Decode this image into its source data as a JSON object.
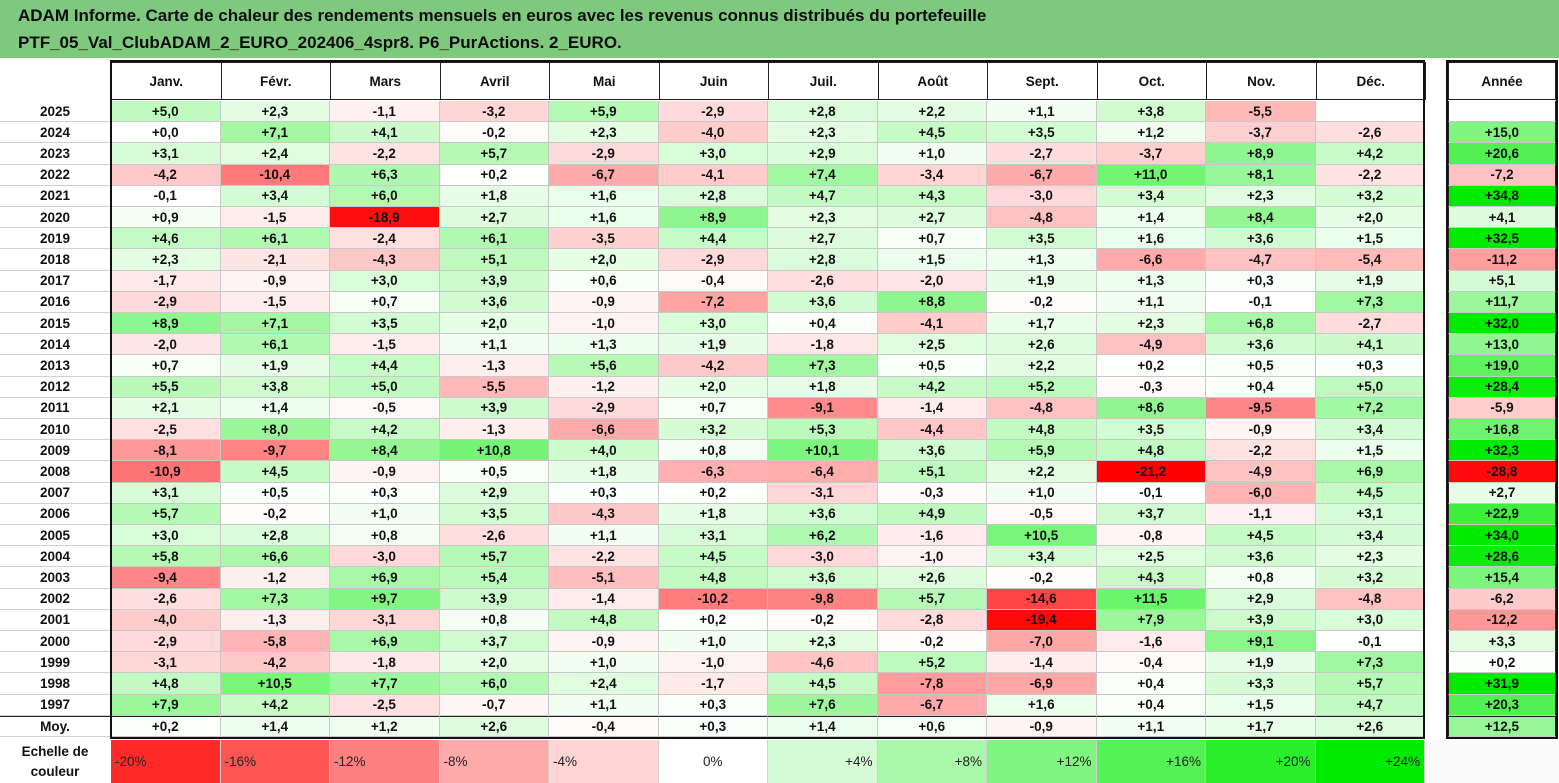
{
  "title": {
    "line1": "ADAM Informe. Carte de chaleur des rendements mensuels en euros avec les revenus connus distribués du portefeuille",
    "line2": "PTF_05_Val_ClubADAM_2_EURO_202406_4spr8. P6_PurActions. 2_EURO."
  },
  "colors": {
    "title_bar": "#7fc97f",
    "negative_max": "#ff0000",
    "positive_max": "#00e000",
    "neutral": "#ffffff"
  },
  "chart_data": {
    "type": "heatmap",
    "title": "ADAM Informe. Carte de chaleur des rendements mensuels en euros avec les revenus connus distribués du portefeuille PTF_05_Val_ClubADAM_2_EURO_202406_4spr8. P6_PurActions. 2_EURO.",
    "months": [
      "Janv.",
      "Févr.",
      "Mars",
      "Avril",
      "Mai",
      "Juin",
      "Juil.",
      "Août",
      "Sept.",
      "Oct.",
      "Nov.",
      "Déc."
    ],
    "year_header": "Année",
    "average_label": "Moy.",
    "rows": [
      {
        "year": "2025",
        "values": [
          "+5,0",
          "+2,3",
          "-1,1",
          "-3,2",
          "+5,9",
          "-2,9",
          "+2,8",
          "+2,2",
          "+1,1",
          "+3,8",
          "-5,5",
          ""
        ],
        "annual": ""
      },
      {
        "year": "2024",
        "values": [
          "+0,0",
          "+7,1",
          "+4,1",
          "-0,2",
          "+2,3",
          "-4,0",
          "+2,3",
          "+4,5",
          "+3,5",
          "+1,2",
          "-3,7",
          "-2,6"
        ],
        "annual": "+15,0"
      },
      {
        "year": "2023",
        "values": [
          "+3,1",
          "+2,4",
          "-2,2",
          "+5,7",
          "-2,9",
          "+3,0",
          "+2,9",
          "+1,0",
          "-2,7",
          "-3,7",
          "+8,9",
          "+4,2"
        ],
        "annual": "+20,6"
      },
      {
        "year": "2022",
        "values": [
          "-4,2",
          "-10,4",
          "+6,3",
          "+0,2",
          "-6,7",
          "-4,1",
          "+7,4",
          "-3,4",
          "-6,7",
          "+11,0",
          "+8,1",
          "-2,2"
        ],
        "annual": "-7,2"
      },
      {
        "year": "2021",
        "values": [
          "-0,1",
          "+3,4",
          "+6,0",
          "+1,8",
          "+1,6",
          "+2,8",
          "+4,7",
          "+4,3",
          "-3,0",
          "+3,4",
          "+2,3",
          "+3,2"
        ],
        "annual": "+34,8"
      },
      {
        "year": "2020",
        "values": [
          "+0,9",
          "-1,5",
          "-18,9",
          "+2,7",
          "+1,6",
          "+8,9",
          "+2,3",
          "+2,7",
          "-4,8",
          "+1,4",
          "+8,4",
          "+2,0"
        ],
        "annual": "+4,1"
      },
      {
        "year": "2019",
        "values": [
          "+4,6",
          "+6,1",
          "-2,4",
          "+6,1",
          "-3,5",
          "+4,4",
          "+2,7",
          "+0,7",
          "+3,5",
          "+1,6",
          "+3,6",
          "+1,5"
        ],
        "annual": "+32,5"
      },
      {
        "year": "2018",
        "values": [
          "+2,3",
          "-2,1",
          "-4,3",
          "+5,1",
          "+2,0",
          "-2,9",
          "+2,8",
          "+1,5",
          "+1,3",
          "-6,6",
          "-4,7",
          "-5,4"
        ],
        "annual": "-11,2"
      },
      {
        "year": "2017",
        "values": [
          "-1,7",
          "-0,9",
          "+3,0",
          "+3,9",
          "+0,6",
          "-0,4",
          "-2,6",
          "-2,0",
          "+1,9",
          "+1,3",
          "+0,3",
          "+1,9"
        ],
        "annual": "+5,1"
      },
      {
        "year": "2016",
        "values": [
          "-2,9",
          "-1,5",
          "+0,7",
          "+3,6",
          "-0,9",
          "-7,2",
          "+3,6",
          "+8,8",
          "-0,2",
          "+1,1",
          "-0,1",
          "+7,3"
        ],
        "annual": "+11,7"
      },
      {
        "year": "2015",
        "values": [
          "+8,9",
          "+7,1",
          "+3,5",
          "+2,0",
          "-1,0",
          "+3,0",
          "+0,4",
          "-4,1",
          "+1,7",
          "+2,3",
          "+6,8",
          "-2,7"
        ],
        "annual": "+32,0"
      },
      {
        "year": "2014",
        "values": [
          "-2,0",
          "+6,1",
          "-1,5",
          "+1,1",
          "+1,3",
          "+1,9",
          "-1,8",
          "+2,5",
          "+2,6",
          "-4,9",
          "+3,6",
          "+4,1"
        ],
        "annual": "+13,0"
      },
      {
        "year": "2013",
        "values": [
          "+0,7",
          "+1,9",
          "+4,4",
          "-1,3",
          "+5,6",
          "-4,2",
          "+7,3",
          "+0,5",
          "+2,2",
          "+0,2",
          "+0,5",
          "+0,3"
        ],
        "annual": "+19,0"
      },
      {
        "year": "2012",
        "values": [
          "+5,5",
          "+3,8",
          "+5,0",
          "-5,5",
          "-1,2",
          "+2,0",
          "+1,8",
          "+4,2",
          "+5,2",
          "-0,3",
          "+0,4",
          "+5,0"
        ],
        "annual": "+28,4"
      },
      {
        "year": "2011",
        "values": [
          "+2,1",
          "+1,4",
          "-0,5",
          "+3,9",
          "-2,9",
          "+0,7",
          "-9,1",
          "-1,4",
          "-4,8",
          "+8,6",
          "-9,5",
          "+7,2"
        ],
        "annual": "-5,9"
      },
      {
        "year": "2010",
        "values": [
          "-2,5",
          "+8,0",
          "+4,2",
          "-1,3",
          "-6,6",
          "+3,2",
          "+5,3",
          "-4,4",
          "+4,8",
          "+3,5",
          "-0,9",
          "+3,4"
        ],
        "annual": "+16,8"
      },
      {
        "year": "2009",
        "values": [
          "-8,1",
          "-9,7",
          "+8,4",
          "+10,8",
          "+4,0",
          "+0,8",
          "+10,1",
          "+3,6",
          "+5,9",
          "+4,8",
          "-2,2",
          "+1,5"
        ],
        "annual": "+32,3"
      },
      {
        "year": "2008",
        "values": [
          "-10,9",
          "+4,5",
          "-0,9",
          "+0,5",
          "+1,8",
          "-6,3",
          "-6,4",
          "+5,1",
          "+2,2",
          "-21,2",
          "-4,9",
          "+6,9"
        ],
        "annual": "-28,8"
      },
      {
        "year": "2007",
        "values": [
          "+3,1",
          "+0,5",
          "+0,3",
          "+2,9",
          "+0,3",
          "+0,2",
          "-3,1",
          "-0,3",
          "+1,0",
          "-0,1",
          "-6,0",
          "+4,5"
        ],
        "annual": "+2,7"
      },
      {
        "year": "2006",
        "values": [
          "+5,7",
          "-0,2",
          "+1,0",
          "+3,5",
          "-4,3",
          "+1,8",
          "+3,6",
          "+4,9",
          "-0,5",
          "+3,7",
          "-1,1",
          "+3,1"
        ],
        "annual": "+22,9"
      },
      {
        "year": "2005",
        "values": [
          "+3,0",
          "+2,8",
          "+0,8",
          "-2,6",
          "+1,1",
          "+3,1",
          "+6,2",
          "-1,6",
          "+10,5",
          "-0,8",
          "+4,5",
          "+3,4"
        ],
        "annual": "+34,0"
      },
      {
        "year": "2004",
        "values": [
          "+5,8",
          "+6,6",
          "-3,0",
          "+5,7",
          "-2,2",
          "+4,5",
          "-3,0",
          "-1,0",
          "+3,4",
          "+2,5",
          "+3,6",
          "+2,3"
        ],
        "annual": "+28,6"
      },
      {
        "year": "2003",
        "values": [
          "-9,4",
          "-1,2",
          "+6,9",
          "+5,4",
          "-5,1",
          "+4,8",
          "+3,6",
          "+2,6",
          "-0,2",
          "+4,3",
          "+0,8",
          "+3,2"
        ],
        "annual": "+15,4"
      },
      {
        "year": "2002",
        "values": [
          "-2,6",
          "+7,3",
          "+9,7",
          "+3,9",
          "-1,4",
          "-10,2",
          "-9,8",
          "+5,7",
          "-14,6",
          "+11,5",
          "+2,9",
          "-4,8"
        ],
        "annual": "-6,2"
      },
      {
        "year": "2001",
        "values": [
          "-4,0",
          "-1,3",
          "-3,1",
          "+0,8",
          "+4,8",
          "+0,2",
          "-0,2",
          "-2,8",
          "-19,4",
          "+7,9",
          "+3,9",
          "+3,0"
        ],
        "annual": "-12,2"
      },
      {
        "year": "2000",
        "values": [
          "-2,9",
          "-5,8",
          "+6,9",
          "+3,7",
          "-0,9",
          "+1,0",
          "+2,3",
          "-0,2",
          "-7,0",
          "-1,6",
          "+9,1",
          "-0,1"
        ],
        "annual": "+3,3"
      },
      {
        "year": "1999",
        "values": [
          "-3,1",
          "-4,2",
          "-1,8",
          "+2,0",
          "+1,0",
          "-1,0",
          "-4,6",
          "+5,2",
          "-1,4",
          "-0,4",
          "+1,9",
          "+7,3"
        ],
        "annual": "+0,2"
      },
      {
        "year": "1998",
        "values": [
          "+4,8",
          "+10,5",
          "+7,7",
          "+6,0",
          "+2,4",
          "-1,7",
          "+4,5",
          "-7,8",
          "-6,9",
          "+0,4",
          "+3,3",
          "+5,7"
        ],
        "annual": "+31,9"
      },
      {
        "year": "1997",
        "values": [
          "+7,9",
          "+4,2",
          "-2,5",
          "-0,7",
          "+1,1",
          "+0,3",
          "+7,6",
          "-6,7",
          "+1,6",
          "+0,4",
          "+1,5",
          "+4,7"
        ],
        "annual": "+20,3"
      },
      {
        "year": "Moy.",
        "values": [
          "+0,2",
          "+1,4",
          "+1,2",
          "+2,6",
          "-0,4",
          "+0,3",
          "+1,4",
          "+0,6",
          "-0,9",
          "+1,1",
          "+1,7",
          "+2,6"
        ],
        "annual": "+12,5"
      }
    ],
    "legend": {
      "label_line1": "Echelle de",
      "label_line2": "couleur",
      "steps": [
        "-20%",
        "-16%",
        "-12%",
        "-8%",
        "-4%",
        "0%",
        "+4%",
        "+8%",
        "+12%",
        "+16%",
        "+20%",
        "+24%"
      ],
      "step_values": [
        -20,
        -16,
        -12,
        -8,
        -4,
        0,
        4,
        8,
        12,
        16,
        20,
        24
      ]
    }
  }
}
